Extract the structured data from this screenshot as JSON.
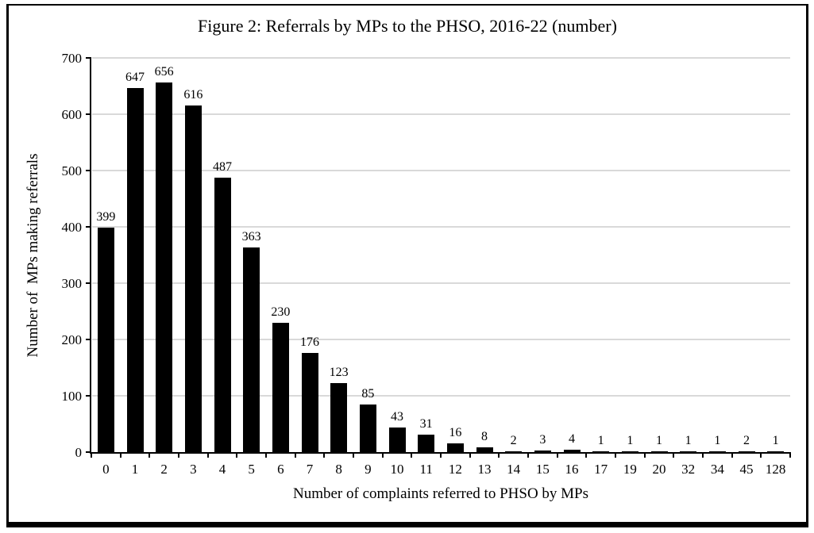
{
  "chart_data": {
    "type": "bar",
    "title": "Figure 2: Referrals by MPs to the PHSO, 2016-22 (number)",
    "xlabel": "Number of complaints referred to PHSO by MPs",
    "ylabel": "Number of  MPs making referrals",
    "categories": [
      "0",
      "1",
      "2",
      "3",
      "4",
      "5",
      "6",
      "7",
      "8",
      "9",
      "10",
      "11",
      "12",
      "13",
      "14",
      "15",
      "16",
      "17",
      "19",
      "20",
      "32",
      "34",
      "45",
      "128"
    ],
    "values": [
      399,
      647,
      656,
      616,
      487,
      363,
      230,
      176,
      123,
      85,
      43,
      31,
      16,
      8,
      2,
      3,
      4,
      1,
      1,
      1,
      1,
      1,
      2,
      1
    ],
    "show_data_labels": true,
    "ylim": [
      0,
      700
    ],
    "yticks": [
      0,
      100,
      200,
      300,
      400,
      500,
      600,
      700
    ],
    "grid": "horizontal-only",
    "legend": "none",
    "bar_color": "#000000",
    "gridline_color": "#d9d9d9",
    "axis_color": "#000000",
    "frame_border_color": "#000000",
    "background_color": "#ffffff"
  }
}
